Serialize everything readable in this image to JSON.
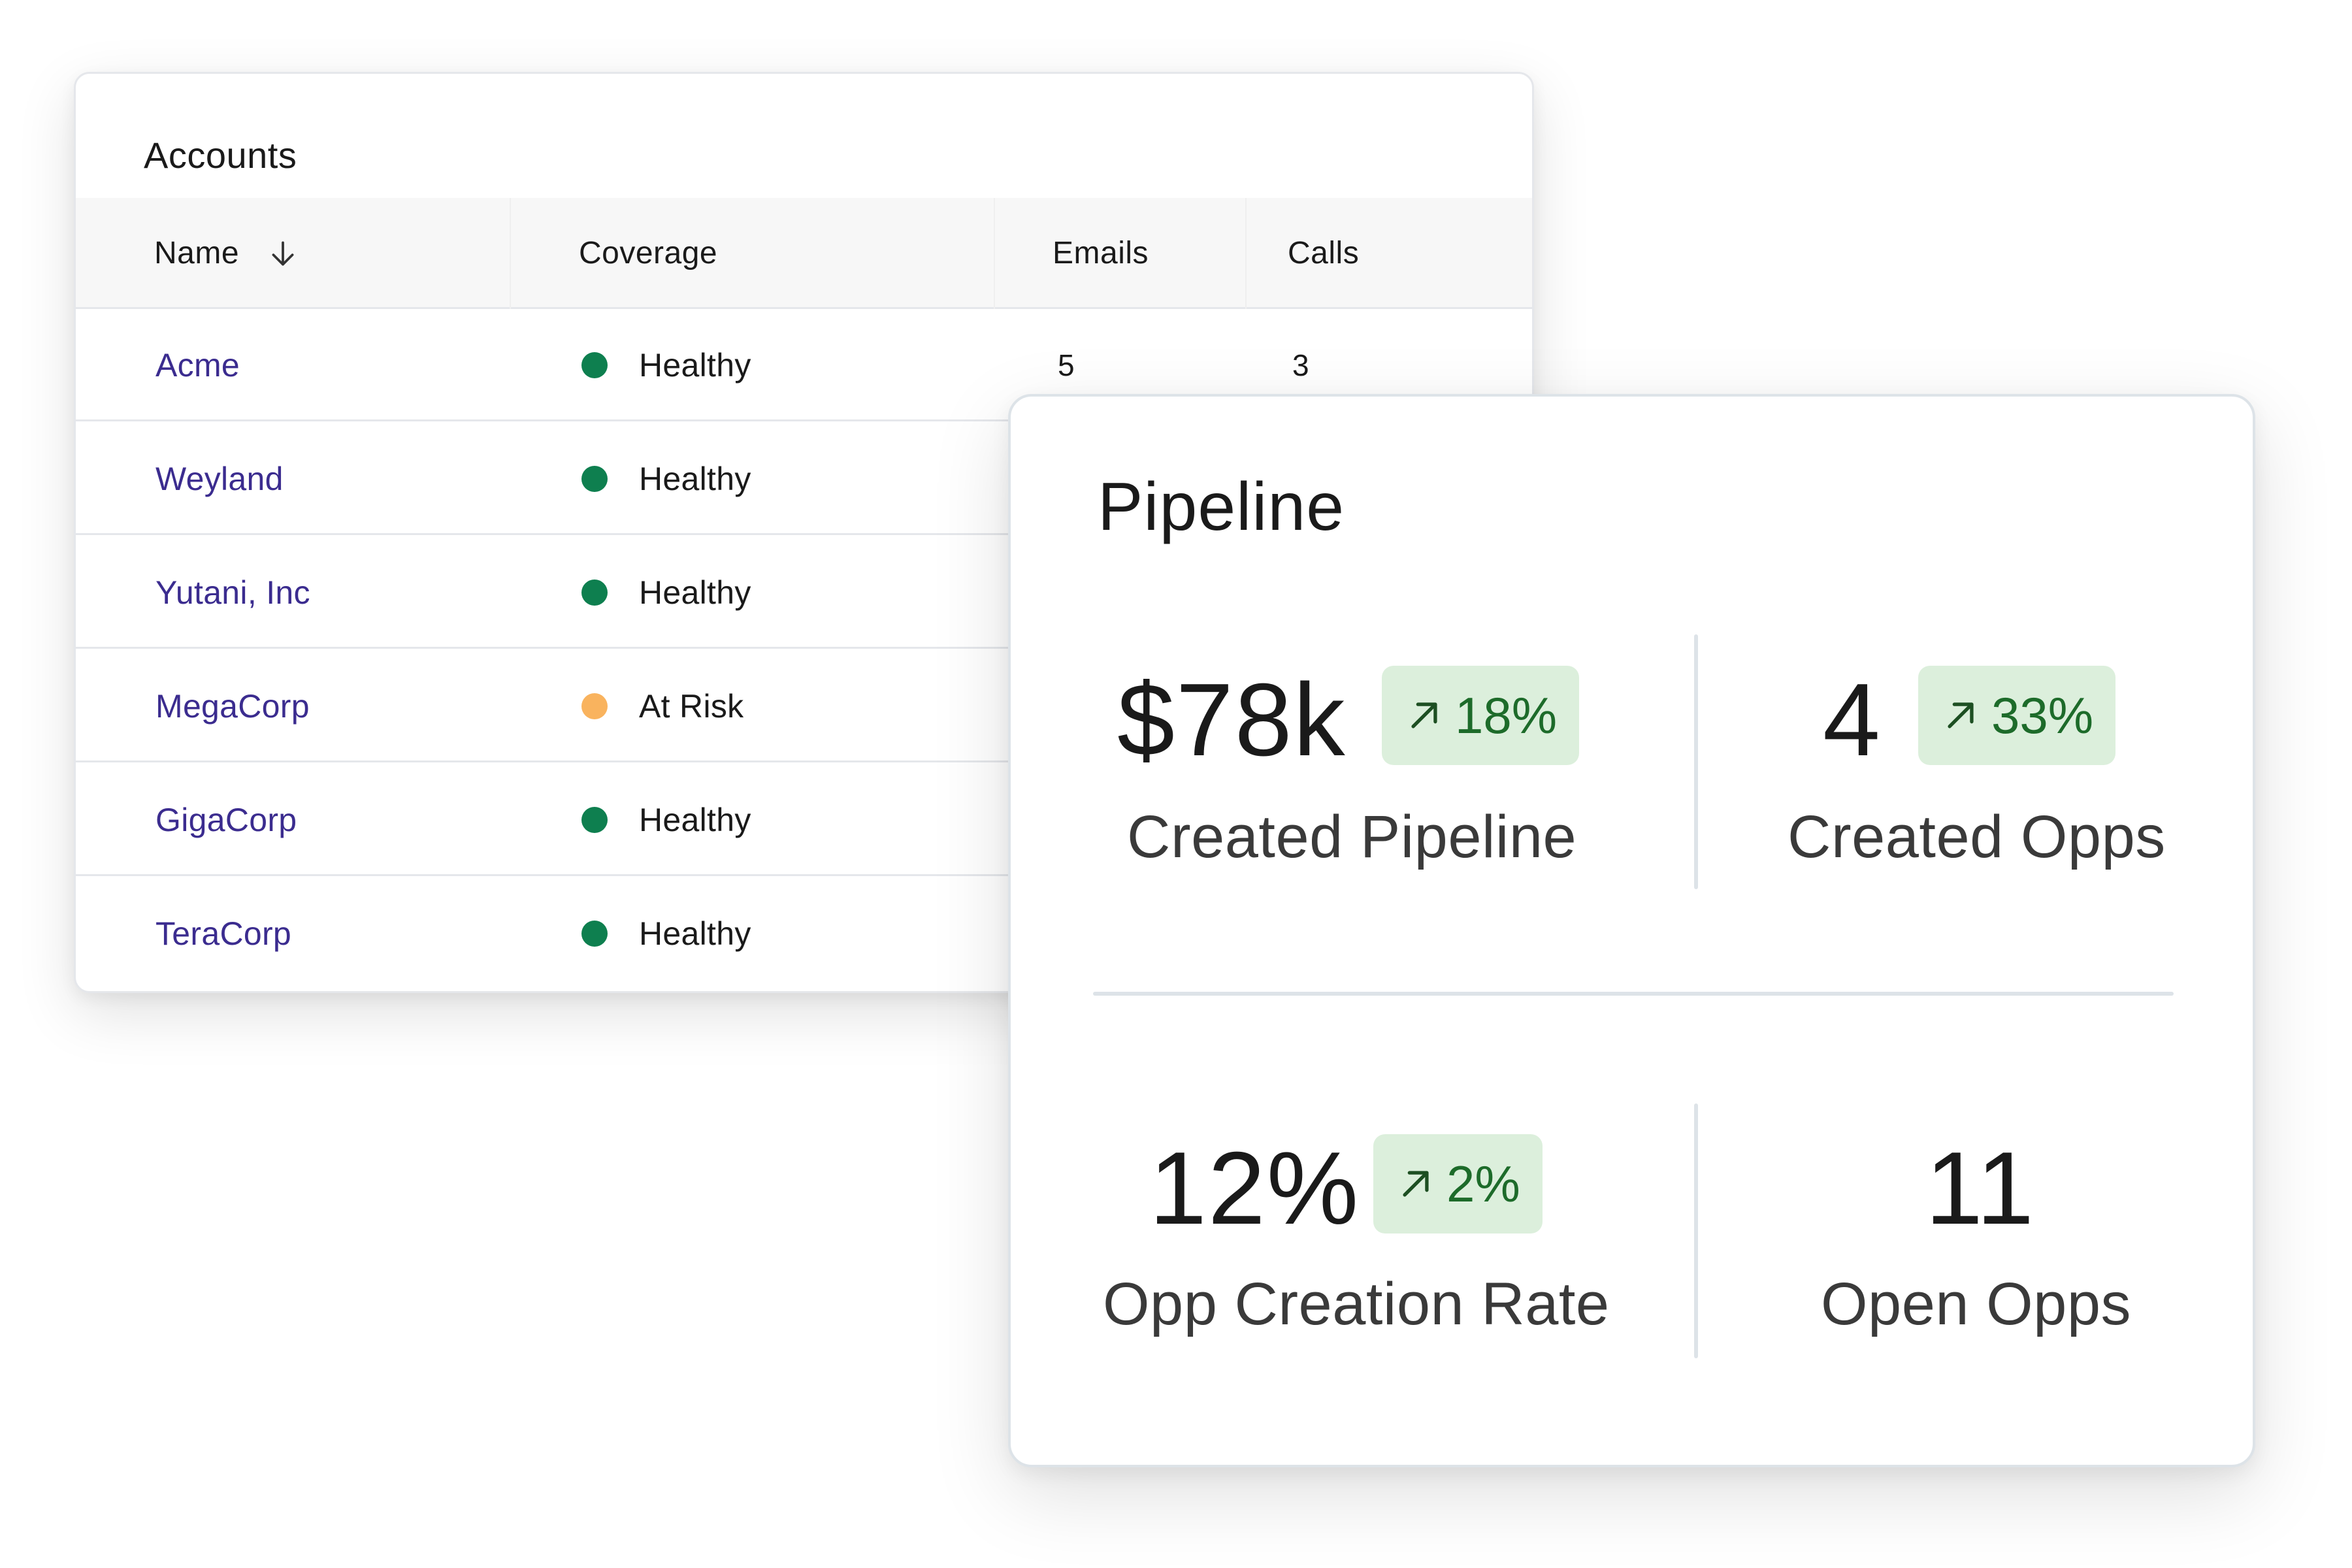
{
  "accounts": {
    "title": "Accounts",
    "columns": {
      "name": "Name",
      "coverage": "Coverage",
      "emails": "Emails",
      "calls": "Calls"
    },
    "sort_icon": "arrow-down-icon",
    "rows": [
      {
        "name": "Acme",
        "status": "Healthy",
        "status_color": "#0e7f4f",
        "emails": "5",
        "calls": "3"
      },
      {
        "name": "Weyland",
        "status": "Healthy",
        "status_color": "#0e7f4f"
      },
      {
        "name": "Yutani, Inc",
        "status": "Healthy",
        "status_color": "#0e7f4f"
      },
      {
        "name": "MegaCorp",
        "status": "At Risk",
        "status_color": "#f9b35e"
      },
      {
        "name": "GigaCorp",
        "status": "Healthy",
        "status_color": "#0e7f4f"
      },
      {
        "name": "TeraCorp",
        "status": "Healthy",
        "status_color": "#0e7f4f"
      }
    ]
  },
  "pipeline": {
    "title": "Pipeline",
    "badge_icon": "trend-up-arrow-icon",
    "metrics": [
      {
        "value": "$78k",
        "label": "Created Pipeline",
        "change": "18%"
      },
      {
        "value": "4",
        "label": "Created Opps",
        "change": "33%"
      },
      {
        "value": "12%",
        "label": "Opp Creation Rate",
        "change": "2%"
      },
      {
        "value": "11",
        "label": "Open Opps"
      }
    ]
  },
  "colors": {
    "link": "#3b2c8f",
    "healthy": "#0e7f4f",
    "at_risk": "#f9b35e",
    "badge_bg": "#dcefdc",
    "badge_text": "#1d6b2a"
  }
}
